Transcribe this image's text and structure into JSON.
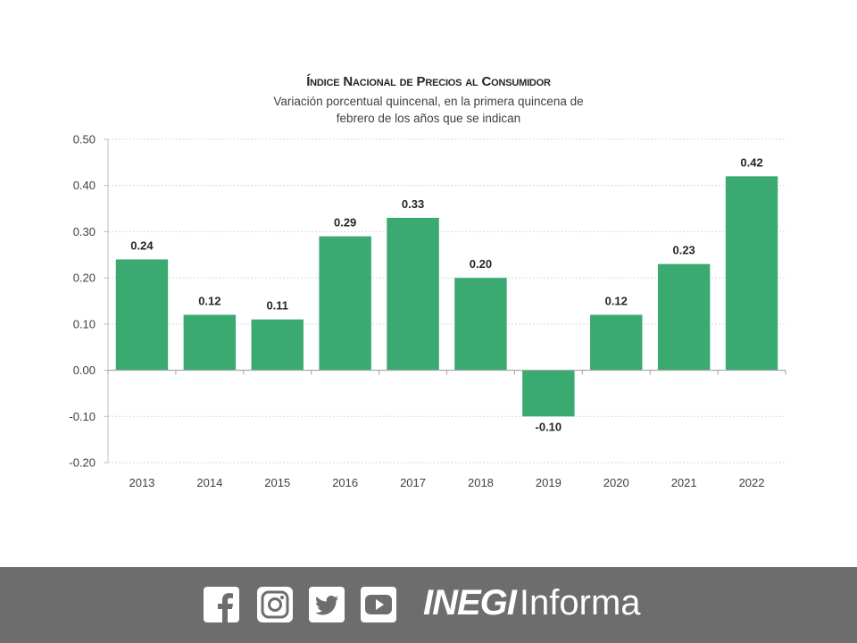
{
  "chart_data": {
    "type": "bar",
    "title": "Índice Nacional de Precios al Consumidor",
    "subtitle_lines": [
      "Variación porcentual quincenal, en la primera quincena de",
      "febrero de los años que se indican"
    ],
    "categories": [
      "2013",
      "2014",
      "2015",
      "2016",
      "2017",
      "2018",
      "2019",
      "2020",
      "2021",
      "2022"
    ],
    "values": [
      0.24,
      0.12,
      0.11,
      0.29,
      0.33,
      0.2,
      -0.1,
      0.12,
      0.23,
      0.42
    ],
    "data_labels": [
      "0.24",
      "0.12",
      "0.11",
      "0.29",
      "0.33",
      "0.20",
      "-0.10",
      "0.12",
      "0.23",
      "0.42"
    ],
    "ylim": [
      -0.2,
      0.5
    ],
    "y_ticks": [
      "0.50",
      "0.40",
      "0.30",
      "0.20",
      "0.10",
      "0.00",
      "-0.10",
      "-0.20"
    ],
    "y_tick_values": [
      0.5,
      0.4,
      0.3,
      0.2,
      0.1,
      0.0,
      -0.1,
      -0.2
    ],
    "grid": true,
    "bar_color": "#3aaa71",
    "xlabel": "",
    "ylabel": ""
  },
  "footer": {
    "background": "#6d6d6d",
    "icons": [
      "facebook-icon",
      "instagram-icon",
      "twitter-icon",
      "youtube-icon"
    ],
    "brand_bold": "INEGI",
    "brand_light": "Informa"
  }
}
